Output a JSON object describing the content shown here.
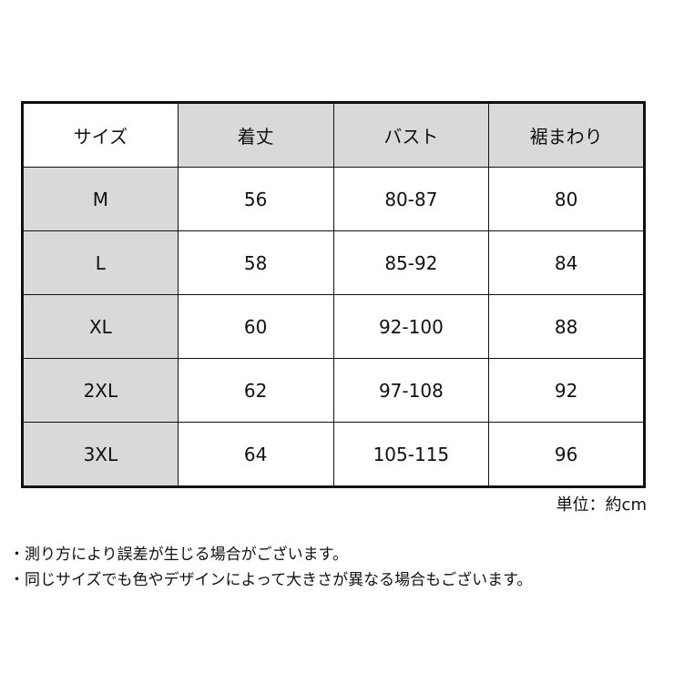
{
  "table": {
    "headers": [
      "サイズ",
      "着丈",
      "バスト",
      "裾まわり"
    ],
    "rows": [
      [
        "M",
        "56",
        "80-87",
        "80"
      ],
      [
        "L",
        "58",
        "85-92",
        "84"
      ],
      [
        "XL",
        "60",
        "92-100",
        "88"
      ],
      [
        "2XL",
        "62",
        "97-108",
        "92"
      ],
      [
        "3XL",
        "64",
        "105-115",
        "96"
      ]
    ]
  },
  "unit": "単位：約cm",
  "notes": [
    "・測り方により誤差が生じる場合がございます。",
    "・同じサイズでも色やデザインによって大きさが異なる場合もございます。"
  ],
  "colors": {
    "header_fill": "#d9d9d9",
    "size_column_fill": "#d9d9d9",
    "border": "#111111"
  }
}
